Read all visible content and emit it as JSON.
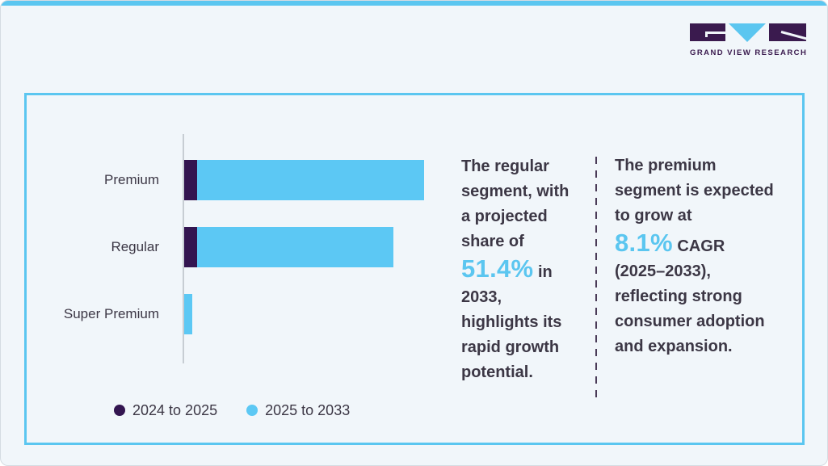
{
  "brand": {
    "name": "GRAND VIEW RESEARCH"
  },
  "theme": {
    "background": "#F1F6FA",
    "accent_blue": "#5BC6F0",
    "bar_blue": "#5CC8F4",
    "bar_purple": "#331550",
    "logo_purple": "#3A1A4E",
    "text_dark": "#3C3745",
    "axis_gray": "#C7CDD3",
    "divider": "#4A3B57",
    "card_border": "#D5DCE2"
  },
  "chart_data": {
    "type": "bar",
    "orientation": "horizontal",
    "stacked": true,
    "title": "",
    "xlabel": "",
    "ylabel": "",
    "axis_values_shown": false,
    "value_units": "relative bar length in px (no numeric axis shown)",
    "categories": [
      "Premium",
      "Regular",
      "Super Premium"
    ],
    "series": [
      {
        "name": "2024 to 2025",
        "color": "#331550",
        "values": [
          16,
          16,
          0
        ]
      },
      {
        "name": "2025 to 2033",
        "color": "#5CC8F4",
        "values": [
          281,
          243,
          10
        ]
      }
    ],
    "legend_position": "bottom-left",
    "grid": false,
    "annotations": [
      "The regular segment, with a projected share of 51.4% in 2033, highlights its rapid growth potential.",
      "The premium segment is expected to grow at 8.1% CAGR (2025–2033), reflecting strong consumer adoption and expansion."
    ]
  },
  "callouts": {
    "left": {
      "lines": [
        [
          {
            "t": "The regular",
            "s": "d"
          }
        ],
        [
          {
            "t": "segment, with",
            "s": "d"
          }
        ],
        [
          {
            "t": "a projected",
            "s": "d"
          }
        ],
        [
          {
            "t": "share of",
            "s": "d"
          }
        ],
        [
          {
            "t": "51.4%",
            "s": "b"
          },
          {
            "t": " in",
            "s": "d"
          }
        ],
        [
          {
            "t": "2033,",
            "s": "d"
          }
        ],
        [
          {
            "t": "highlights its",
            "s": "d"
          }
        ],
        [
          {
            "t": "rapid growth",
            "s": "d"
          }
        ],
        [
          {
            "t": "potential.",
            "s": "d"
          }
        ]
      ]
    },
    "right": {
      "lines": [
        [
          {
            "t": "The premium",
            "s": "d"
          }
        ],
        [
          {
            "t": "segment is expected",
            "s": "d"
          }
        ],
        [
          {
            "t": "to grow at",
            "s": "d"
          }
        ],
        [
          {
            "t": "8.1%",
            "s": "b"
          },
          {
            "t": " CAGR",
            "s": "d"
          }
        ],
        [
          {
            "t": "(2025–2033),",
            "s": "d"
          }
        ],
        [
          {
            "t": "reflecting strong",
            "s": "d"
          }
        ],
        [
          {
            "t": "consumer adoption",
            "s": "d"
          }
        ],
        [
          {
            "t": "and expansion.",
            "s": "d"
          }
        ]
      ]
    }
  }
}
